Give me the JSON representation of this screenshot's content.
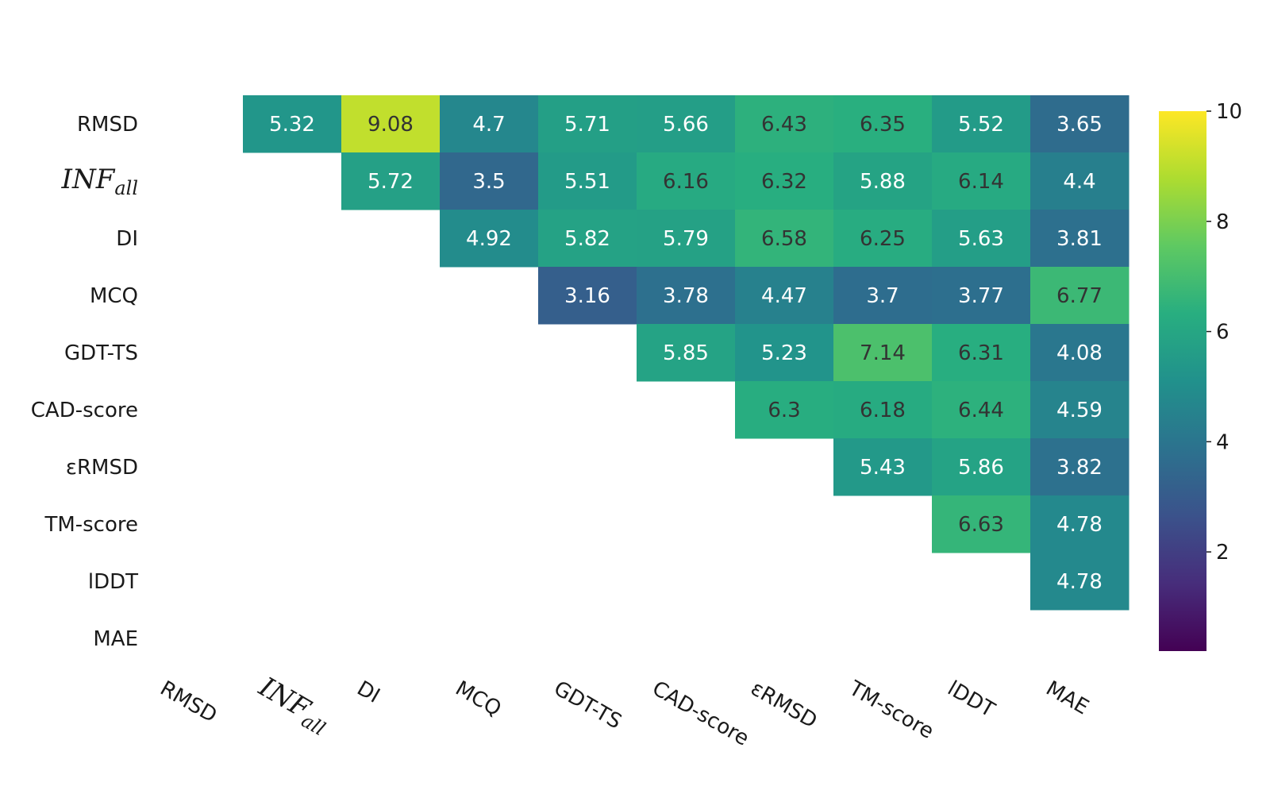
{
  "chart_data": {
    "type": "heatmap",
    "labels": [
      {
        "text": "RMSD"
      },
      {
        "text": "INF",
        "sub": "all"
      },
      {
        "text": "DI"
      },
      {
        "text": "MCQ"
      },
      {
        "text": "GDT-TS"
      },
      {
        "text": "CAD-score"
      },
      {
        "text": "εRMSD"
      },
      {
        "text": "TM-score"
      },
      {
        "text": "lDDT"
      },
      {
        "text": "MAE"
      }
    ],
    "values": [
      [
        null,
        5.32,
        9.08,
        4.7,
        5.71,
        5.66,
        6.43,
        6.35,
        5.52,
        3.65
      ],
      [
        null,
        null,
        5.72,
        3.5,
        5.51,
        6.16,
        6.32,
        5.88,
        6.14,
        4.4
      ],
      [
        null,
        null,
        null,
        4.92,
        5.82,
        5.79,
        6.58,
        6.25,
        5.63,
        3.81
      ],
      [
        null,
        null,
        null,
        null,
        3.16,
        3.78,
        4.47,
        3.7,
        3.77,
        6.77
      ],
      [
        null,
        null,
        null,
        null,
        null,
        5.85,
        5.23,
        7.14,
        6.31,
        4.08
      ],
      [
        null,
        null,
        null,
        null,
        null,
        null,
        6.3,
        6.18,
        6.44,
        4.59
      ],
      [
        null,
        null,
        null,
        null,
        null,
        null,
        null,
        5.43,
        5.86,
        3.82
      ],
      [
        null,
        null,
        null,
        null,
        null,
        null,
        null,
        null,
        6.63,
        4.78
      ],
      [
        null,
        null,
        null,
        null,
        null,
        null,
        null,
        null,
        null,
        4.78
      ],
      [
        null,
        null,
        null,
        null,
        null,
        null,
        null,
        null,
        null,
        null
      ]
    ],
    "colormap": "viridis",
    "vmin": 0.2,
    "vmax": 10,
    "colorbar_ticks": [
      "2",
      "4",
      "6",
      "8",
      "10"
    ],
    "text_colors": {
      "light": "#ffffff",
      "dark": "#333333"
    }
  }
}
